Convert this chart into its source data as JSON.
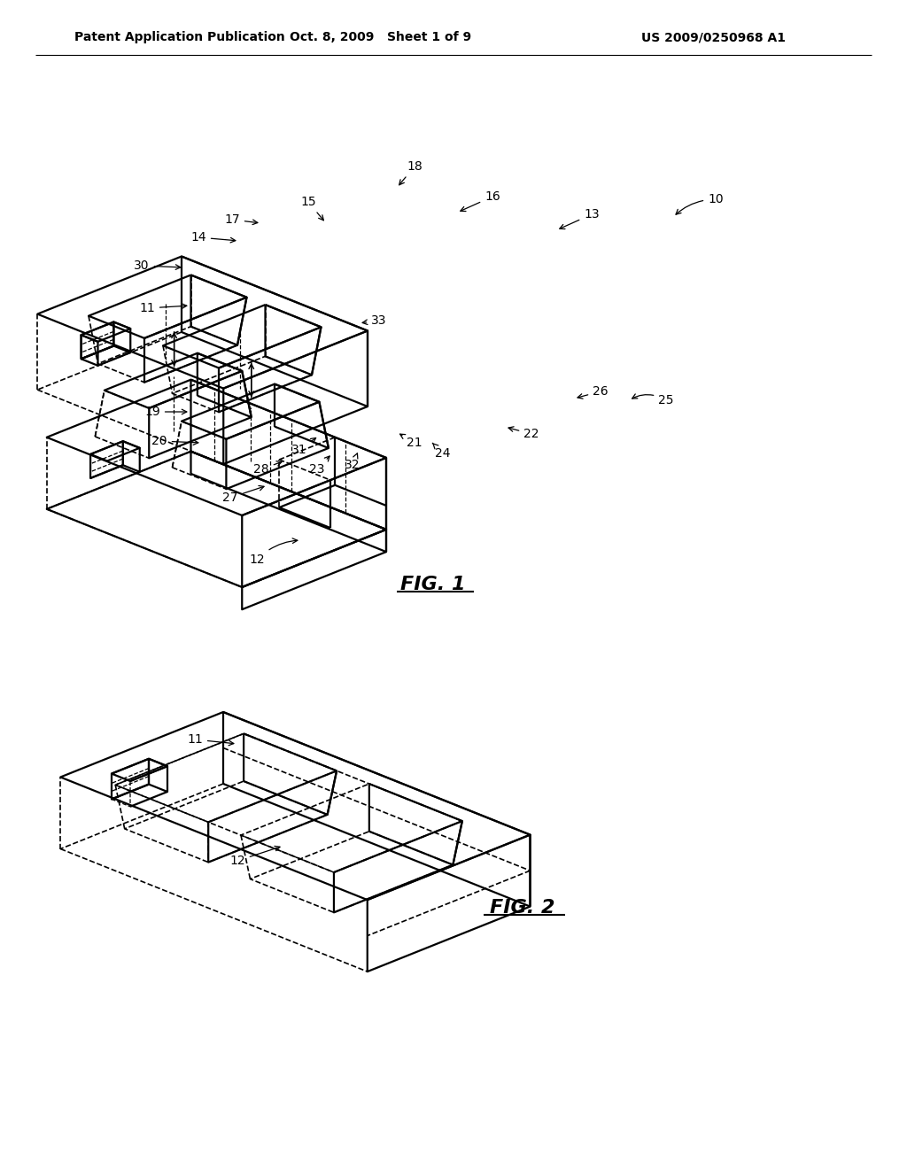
{
  "bg_color": "#ffffff",
  "line_color": "#000000",
  "header_left": "Patent Application Publication",
  "header_mid": "Oct. 8, 2009   Sheet 1 of 9",
  "header_right": "US 2009/0250968 A1",
  "fig1_label": "FIG. 1",
  "fig2_label": "FIG. 2",
  "lw": 1.6,
  "dlw": 1.2
}
